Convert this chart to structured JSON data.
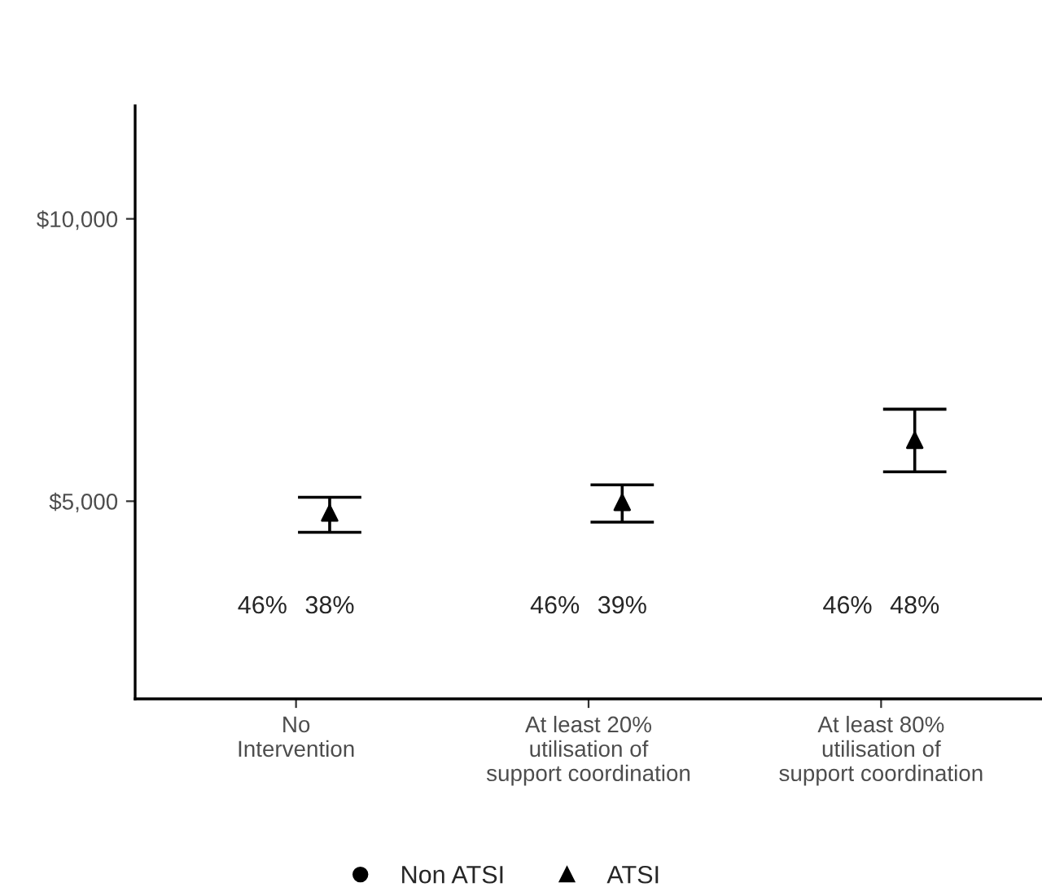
{
  "chart_data": {
    "type": "scatter",
    "categories": [
      "No\nIntervention",
      "At least 20%\nutilisation of\nsupport coordination",
      "At least 80%\nutilisation of\nsupport coordination"
    ],
    "series": [
      {
        "name": "Non ATSI",
        "color": "#000000",
        "marker": "circle",
        "values": [
          null,
          null,
          null
        ],
        "errors": [
          null,
          null,
          null
        ]
      },
      {
        "name": "ATSI",
        "color": "#000000",
        "marker": "triangle",
        "values": [
          4790,
          4980,
          6080
        ],
        "errors": [
          [
            4450,
            5070
          ],
          [
            4630,
            5290
          ],
          [
            5520,
            6630
          ]
        ]
      }
    ],
    "ylim": [
      1500,
      12000
    ],
    "yticks": [
      {
        "value": 5000,
        "label": "$5,000"
      },
      {
        "value": 10000,
        "label": "$10,000"
      }
    ],
    "annotations": [
      "46%",
      "38%",
      "46%",
      "39%",
      "46%",
      "48%"
    ],
    "grid": false,
    "legend": "bottom"
  }
}
